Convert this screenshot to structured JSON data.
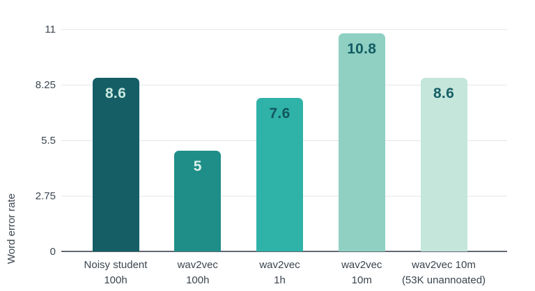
{
  "chart_data": {
    "type": "bar",
    "title": "",
    "xlabel": "",
    "ylabel": "Word error rate",
    "categories": [
      "Noisy student\n100h",
      "wav2vec\n100h",
      "wav2vec\n1h",
      "wav2vec\n10m",
      "wav2vec 10m\n(53K unannoated)"
    ],
    "values": [
      8.6,
      5,
      7.6,
      10.8,
      8.6
    ],
    "value_labels": [
      "8.6",
      "5",
      "7.6",
      "10.8",
      "8.6"
    ],
    "bar_colors": [
      "#155e66",
      "#1f8e88",
      "#2fb2a7",
      "#8fd0c2",
      "#c4e6db"
    ],
    "value_label_colors": [
      "#c7e8de",
      "#d9f0e9",
      "#12565c",
      "#135c63",
      "#175f66"
    ],
    "ylim": [
      0,
      11
    ],
    "yticks": [
      0,
      2.75,
      5.5,
      8.25,
      11
    ],
    "ytick_labels": [
      "0",
      "2.75",
      "5.5",
      "8.25",
      "11"
    ],
    "grid": "horizontal",
    "legend": "none",
    "colors": {
      "axis_text": "#3b4650",
      "gridline": "#e3e7ec",
      "baseline": "#5f6972",
      "background": "#ffffff"
    }
  }
}
